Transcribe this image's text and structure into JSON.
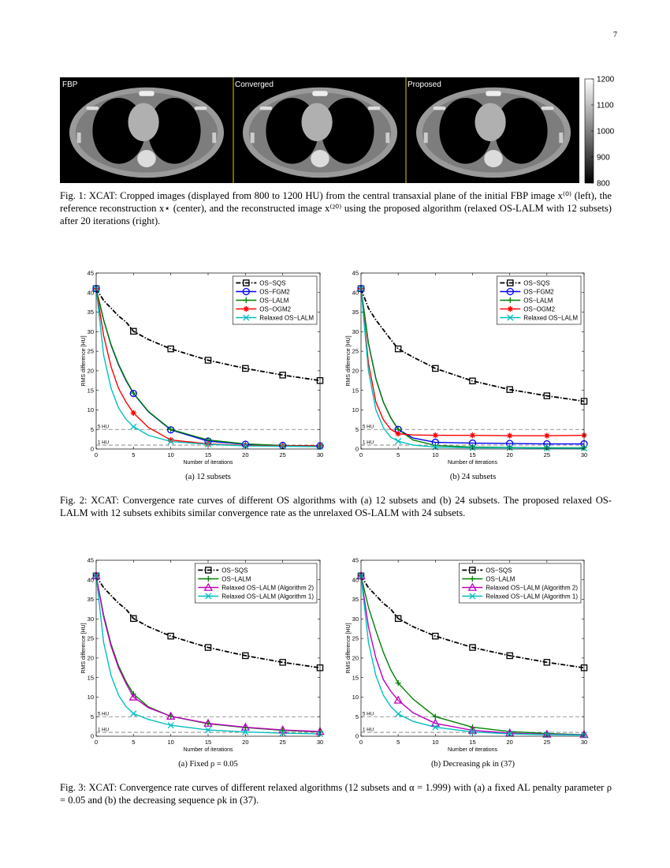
{
  "page_number": "7",
  "figure1": {
    "panels": [
      "FBP",
      "Converged",
      "Proposed"
    ],
    "colorbar": {
      "lim": [
        800,
        1200
      ],
      "ticks": [
        800,
        900,
        1000,
        1100,
        1200
      ]
    },
    "caption": "Fig. 1: XCAT: Cropped images (displayed from 800 to 1200 HU) from the central transaxial plane of the initial FBP image x⁽⁰⁾ (left), the reference reconstruction x⋆ (center), and the reconstructed image x⁽²⁰⁾ using the proposed algorithm (relaxed OS-LALM with 12 subsets) after 20 iterations (right)."
  },
  "figure2_caption": "Fig. 2: XCAT: Convergence rate curves of different OS algorithms with (a) 12 subsets and (b) 24 subsets. The proposed relaxed OS-LALM with 12 subsets exhibits similar convergence rate as the unrelaxed OS-LALM with 24 subsets.",
  "figure3_caption": "Fig. 3: XCAT: Convergence rate curves of different relaxed algorithms (12 subsets and α = 1.999) with (a) a fixed AL penalty parameter ρ = 0.05 and (b) the decreasing sequence ρk in (37).",
  "chart_data": [
    {
      "type": "line",
      "caption": "(a) 12 subsets",
      "xlabel": "Number of iterations",
      "ylabel": "RMS difference [HU]",
      "x": [
        0,
        1,
        2,
        3,
        4,
        5,
        7,
        10,
        15,
        20,
        25,
        30
      ],
      "xlim": [
        0,
        30
      ],
      "ylim": [
        0,
        45
      ],
      "xticks": [
        0,
        5,
        10,
        15,
        20,
        25,
        30
      ],
      "yticks": [
        0,
        5,
        10,
        15,
        20,
        25,
        30,
        35,
        40,
        45
      ],
      "hlines": [
        {
          "value": 5,
          "label": "5 HU"
        },
        {
          "value": 1,
          "label": "1 HU"
        }
      ],
      "legend": "upper right",
      "series": [
        {
          "name": "OS−SQS",
          "color": "#000000",
          "style": "dashdot",
          "marker": "square",
          "values": [
            41,
            38,
            36,
            34,
            32.5,
            30.1,
            28,
            25.6,
            22.7,
            20.6,
            18.9,
            17.5
          ]
        },
        {
          "name": "OS−FGM2",
          "color": "#0000ff",
          "style": "solid",
          "marker": "circle",
          "values": [
            41,
            33,
            26.5,
            21.5,
            17.5,
            14.2,
            9.5,
            4.9,
            2.0,
            1.2,
            0.9,
            0.8
          ]
        },
        {
          "name": "OS−LALM",
          "color": "#008000",
          "style": "solid",
          "marker": "plus",
          "values": [
            41,
            33,
            26.7,
            21.7,
            17.7,
            14.3,
            9.6,
            5.0,
            2.3,
            1.3,
            0.9,
            0.8
          ]
        },
        {
          "name": "OS−OGM2",
          "color": "#ff0000",
          "style": "solid",
          "marker": "asterisk",
          "values": [
            41,
            29,
            21,
            15.5,
            12,
            9.2,
            5.5,
            2.3,
            1.3,
            0.9,
            0.8,
            0.8
          ]
        },
        {
          "name": "Relaxed OS−LALM",
          "color": "#00bfbf",
          "style": "solid",
          "marker": "x",
          "values": [
            41,
            24,
            15.5,
            10.5,
            7.6,
            5.7,
            3.5,
            1.9,
            1.2,
            0.8,
            0.7,
            0.6
          ]
        }
      ]
    },
    {
      "type": "line",
      "caption": "(b) 24 subsets",
      "xlabel": "Number of iterations",
      "ylabel": "RMS difference [HU]",
      "x": [
        0,
        1,
        2,
        3,
        4,
        5,
        7,
        10,
        15,
        20,
        25,
        30
      ],
      "xlim": [
        0,
        30
      ],
      "ylim": [
        0,
        45
      ],
      "xticks": [
        0,
        5,
        10,
        15,
        20,
        25,
        30
      ],
      "yticks": [
        0,
        5,
        10,
        15,
        20,
        25,
        30,
        35,
        40,
        45
      ],
      "hlines": [
        {
          "value": 5,
          "label": "5 HU"
        },
        {
          "value": 1,
          "label": "1 HU"
        }
      ],
      "legend": "upper right",
      "series": [
        {
          "name": "OS−SQS",
          "color": "#000000",
          "style": "dashdot",
          "marker": "square",
          "values": [
            41,
            36,
            33,
            30.5,
            28,
            25.6,
            23.5,
            20.6,
            17.4,
            15.2,
            13.6,
            12.2
          ]
        },
        {
          "name": "OS−FGM2",
          "color": "#0000ff",
          "style": "solid",
          "marker": "circle",
          "values": [
            41,
            27,
            18,
            12,
            8,
            5.0,
            2.8,
            1.7,
            1.5,
            1.4,
            1.3,
            1.3
          ]
        },
        {
          "name": "OS−LALM",
          "color": "#008000",
          "style": "solid",
          "marker": "plus",
          "values": [
            41,
            27,
            18,
            12,
            8,
            5.0,
            2.3,
            0.9,
            0.5,
            0.4,
            0.3,
            0.3
          ]
        },
        {
          "name": "OS−OGM2",
          "color": "#ff0000",
          "style": "solid",
          "marker": "asterisk",
          "values": [
            41,
            22,
            12,
            7.5,
            5,
            3.9,
            3.6,
            3.5,
            3.5,
            3.4,
            3.4,
            3.5
          ]
        },
        {
          "name": "Relaxed OS−LALM",
          "color": "#00bfbf",
          "style": "solid",
          "marker": "x",
          "values": [
            41,
            20,
            10,
            5.5,
            3,
            2.0,
            1.0,
            0.5,
            0.3,
            0.3,
            0.2,
            0.2
          ]
        }
      ]
    },
    {
      "type": "line",
      "caption": "(a) Fixed ρ = 0.05",
      "xlabel": "Number of iterations",
      "ylabel": "RMS difference [HU]",
      "x": [
        0,
        1,
        2,
        3,
        4,
        5,
        7,
        10,
        15,
        20,
        25,
        30
      ],
      "xlim": [
        0,
        30
      ],
      "ylim": [
        0,
        45
      ],
      "xticks": [
        0,
        5,
        10,
        15,
        20,
        25,
        30
      ],
      "yticks": [
        0,
        5,
        10,
        15,
        20,
        25,
        30,
        35,
        40,
        45
      ],
      "hlines": [
        {
          "value": 5,
          "label": "5 HU"
        },
        {
          "value": 1,
          "label": "1 HU"
        }
      ],
      "legend": "upper right",
      "series": [
        {
          "name": "OS−SQS",
          "color": "#000000",
          "style": "dashdot",
          "marker": "square",
          "values": [
            41,
            38,
            36,
            34,
            32.5,
            30.1,
            28,
            25.6,
            22.7,
            20.6,
            18.9,
            17.5
          ]
        },
        {
          "name": "OS−LALM",
          "color": "#008000",
          "style": "solid",
          "marker": "plus",
          "values": [
            41,
            31,
            23.5,
            18,
            14,
            10.8,
            7.5,
            5.1,
            3.2,
            2.2,
            1.5,
            1.1
          ]
        },
        {
          "name": "Relaxed OS−LALM (Algorithm 2)",
          "color": "#bf00bf",
          "style": "solid",
          "marker": "triangle",
          "values": [
            41,
            30.5,
            23,
            17.5,
            13.5,
            10.0,
            7.3,
            5.1,
            3.3,
            2.3,
            1.6,
            1.2
          ]
        },
        {
          "name": "Relaxed OS−LALM (Algorithm 1)",
          "color": "#00bfbf",
          "style": "solid",
          "marker": "x",
          "values": [
            41,
            24,
            15.5,
            10.5,
            7.6,
            5.8,
            4.3,
            2.8,
            1.6,
            1.1,
            0.8,
            0.6
          ]
        }
      ]
    },
    {
      "type": "line",
      "caption": "(b) Decreasing ρk in (37)",
      "xlabel": "Number of iterations",
      "ylabel": "RMS difference [HU]",
      "x": [
        0,
        1,
        2,
        3,
        4,
        5,
        7,
        10,
        15,
        20,
        25,
        30
      ],
      "xlim": [
        0,
        30
      ],
      "ylim": [
        0,
        45
      ],
      "xticks": [
        0,
        5,
        10,
        15,
        20,
        25,
        30
      ],
      "yticks": [
        0,
        5,
        10,
        15,
        20,
        25,
        30,
        35,
        40,
        45
      ],
      "hlines": [
        {
          "value": 5,
          "label": "5 HU"
        },
        {
          "value": 1,
          "label": "1 HU"
        }
      ],
      "legend": "upper right",
      "series": [
        {
          "name": "OS−SQS",
          "color": "#000000",
          "style": "dashdot",
          "marker": "square",
          "values": [
            41,
            38,
            36,
            34,
            32.5,
            30.1,
            28,
            25.6,
            22.7,
            20.6,
            18.9,
            17.5
          ]
        },
        {
          "name": "OS−LALM",
          "color": "#008000",
          "style": "solid",
          "marker": "plus",
          "values": [
            41,
            33,
            27,
            21.5,
            17,
            13.6,
            9.5,
            5.0,
            2.3,
            1.2,
            0.7,
            0.4
          ]
        },
        {
          "name": "Relaxed OS−LALM (Algorithm 2)",
          "color": "#bf00bf",
          "style": "solid",
          "marker": "triangle",
          "values": [
            41,
            28,
            20,
            14.5,
            11.5,
            9.2,
            6,
            3.3,
            1.5,
            0.8,
            0.5,
            0.4
          ]
        },
        {
          "name": "Relaxed OS−LALM (Algorithm 1)",
          "color": "#00bfbf",
          "style": "solid",
          "marker": "x",
          "values": [
            41,
            24,
            15.5,
            10.5,
            7.6,
            5.7,
            3.8,
            2.3,
            1.1,
            0.6,
            0.4,
            0.3
          ]
        }
      ]
    }
  ]
}
